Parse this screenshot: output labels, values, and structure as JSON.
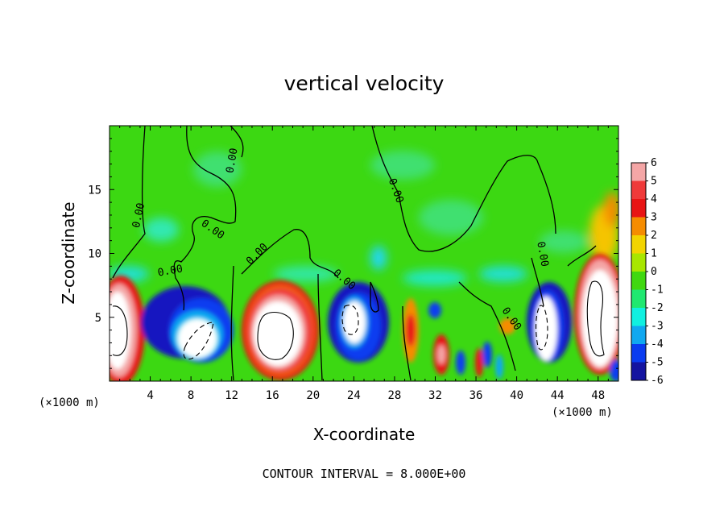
{
  "chart_data": {
    "type": "heatmap",
    "title": "vertical velocity",
    "xlabel": "X-coordinate",
    "ylabel": "Z-coordinate",
    "x_unit_left": "(×1000 m)",
    "x_unit_right": "(×1000 m)",
    "xlim": [
      0,
      50
    ],
    "ylim": [
      0,
      20
    ],
    "x_ticks": [
      4,
      8,
      12,
      16,
      20,
      24,
      28,
      32,
      36,
      40,
      44,
      48
    ],
    "y_ticks": [
      5,
      10,
      15
    ],
    "colorbar": {
      "levels": [
        6,
        5,
        4,
        3,
        2,
        1,
        0,
        -1,
        -2,
        -3,
        -4,
        -5,
        -6
      ],
      "colors": [
        "#f4a6a6",
        "#ef3a3a",
        "#e81414",
        "#f58c00",
        "#f2d400",
        "#a8e600",
        "#40d810",
        "#20e870",
        "#10f0e0",
        "#10a8f0",
        "#0a3cf0",
        "#1414a0",
        "#8a1fc4"
      ]
    },
    "contour_labels": [
      "0.00",
      "0.00",
      "0.00",
      "0.00",
      "0.00",
      "0.00",
      "0.00",
      "0.00",
      "0.00"
    ],
    "footer": "CONTOUR INTERVAL = 8.000E+00"
  }
}
